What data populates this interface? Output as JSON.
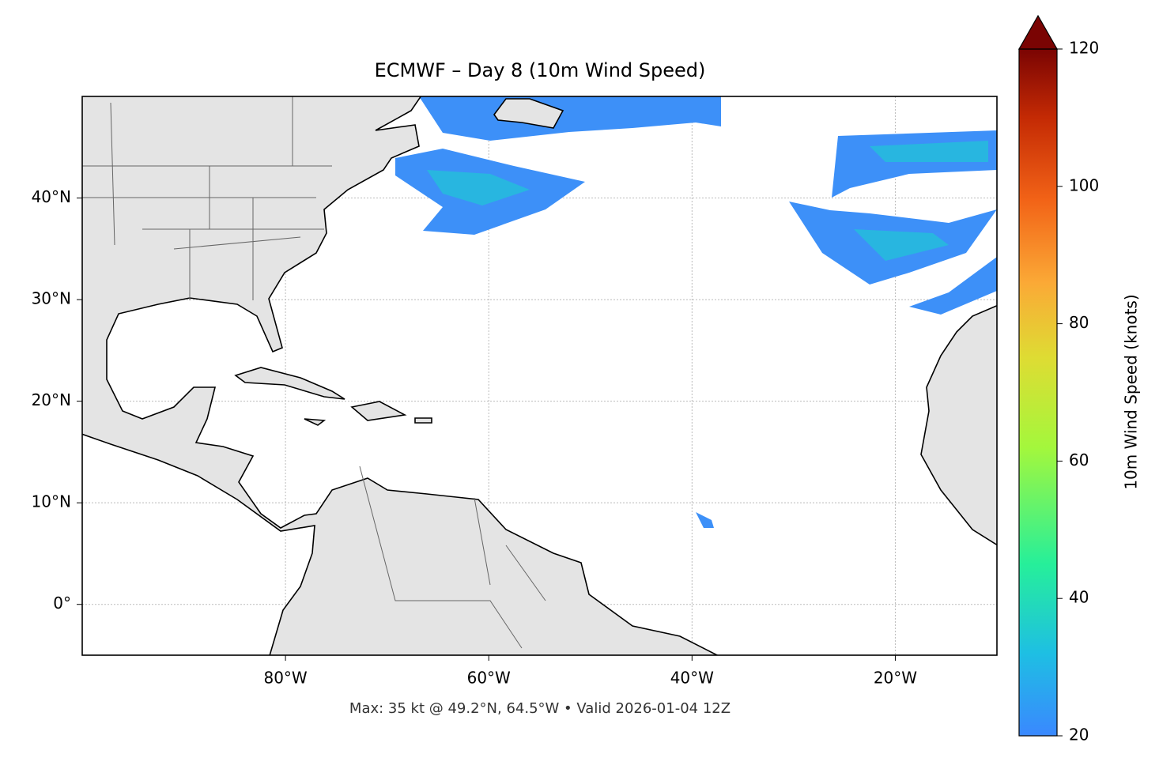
{
  "chart_data": {
    "type": "map",
    "title": "ECMWF – Day 8 (10m Wind Speed)",
    "footer": "Max: 35 kt @ 49.2°N, 64.5°W • Valid 2026-01-04 12Z",
    "xlim": [
      -100,
      -10
    ],
    "ylim": [
      -5,
      50
    ],
    "xticks": [
      {
        "value": -80,
        "label": "80°W"
      },
      {
        "value": -60,
        "label": "60°W"
      },
      {
        "value": -40,
        "label": "40°W"
      },
      {
        "value": -20,
        "label": "20°W"
      }
    ],
    "yticks": [
      {
        "value": 0,
        "label": "0°"
      },
      {
        "value": 10,
        "label": "10°N"
      },
      {
        "value": 20,
        "label": "20°N"
      },
      {
        "value": 30,
        "label": "30°N"
      },
      {
        "value": 40,
        "label": "40°N"
      }
    ],
    "grid": true,
    "colorbar": {
      "label": "10m Wind Speed (knots)",
      "lim": [
        20,
        120
      ],
      "ticks": [
        20,
        40,
        60,
        80,
        100,
        120
      ]
    }
  }
}
